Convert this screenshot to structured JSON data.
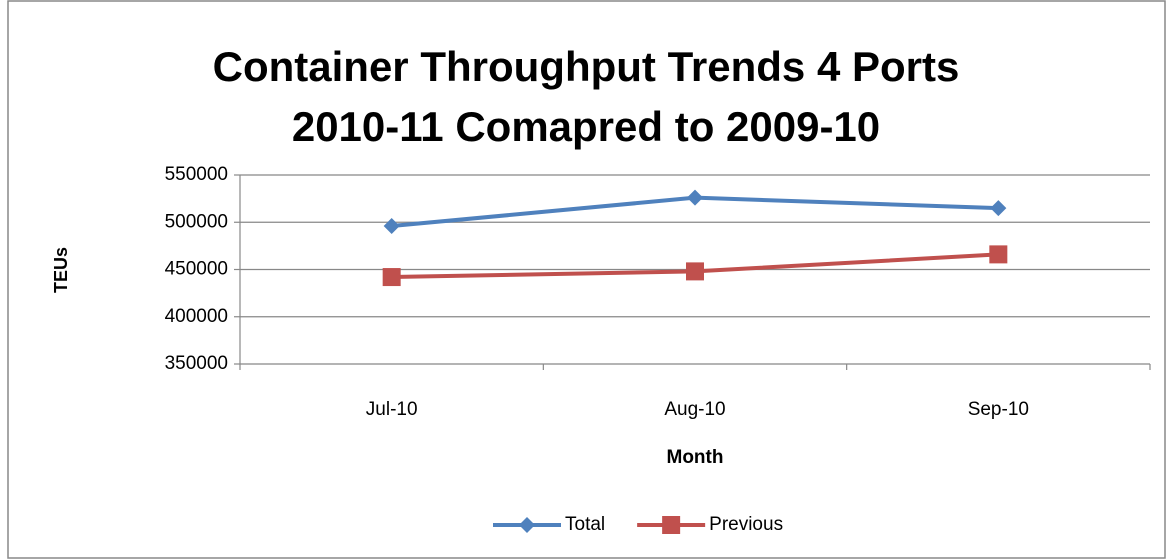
{
  "chart_data": {
    "type": "line",
    "title": [
      "Container Throughput Trends 4 Ports",
      "2010-11 Comapred to 2009-10"
    ],
    "x_label": "Month",
    "y_label": "TEUs",
    "categories": [
      "Jul-10",
      "Aug-10",
      "Sep-10"
    ],
    "series": [
      {
        "name": "Total",
        "color": "#4f81bd",
        "marker": "diamond",
        "values": [
          496000,
          526000,
          515000
        ]
      },
      {
        "name": "Previous",
        "color": "#c0504d",
        "marker": "square",
        "values": [
          442000,
          448000,
          466000
        ]
      }
    ],
    "ylim": [
      350000,
      550000
    ],
    "yticks": [
      350000,
      400000,
      450000,
      500000,
      550000
    ],
    "grid": true,
    "legend": "bottom"
  }
}
